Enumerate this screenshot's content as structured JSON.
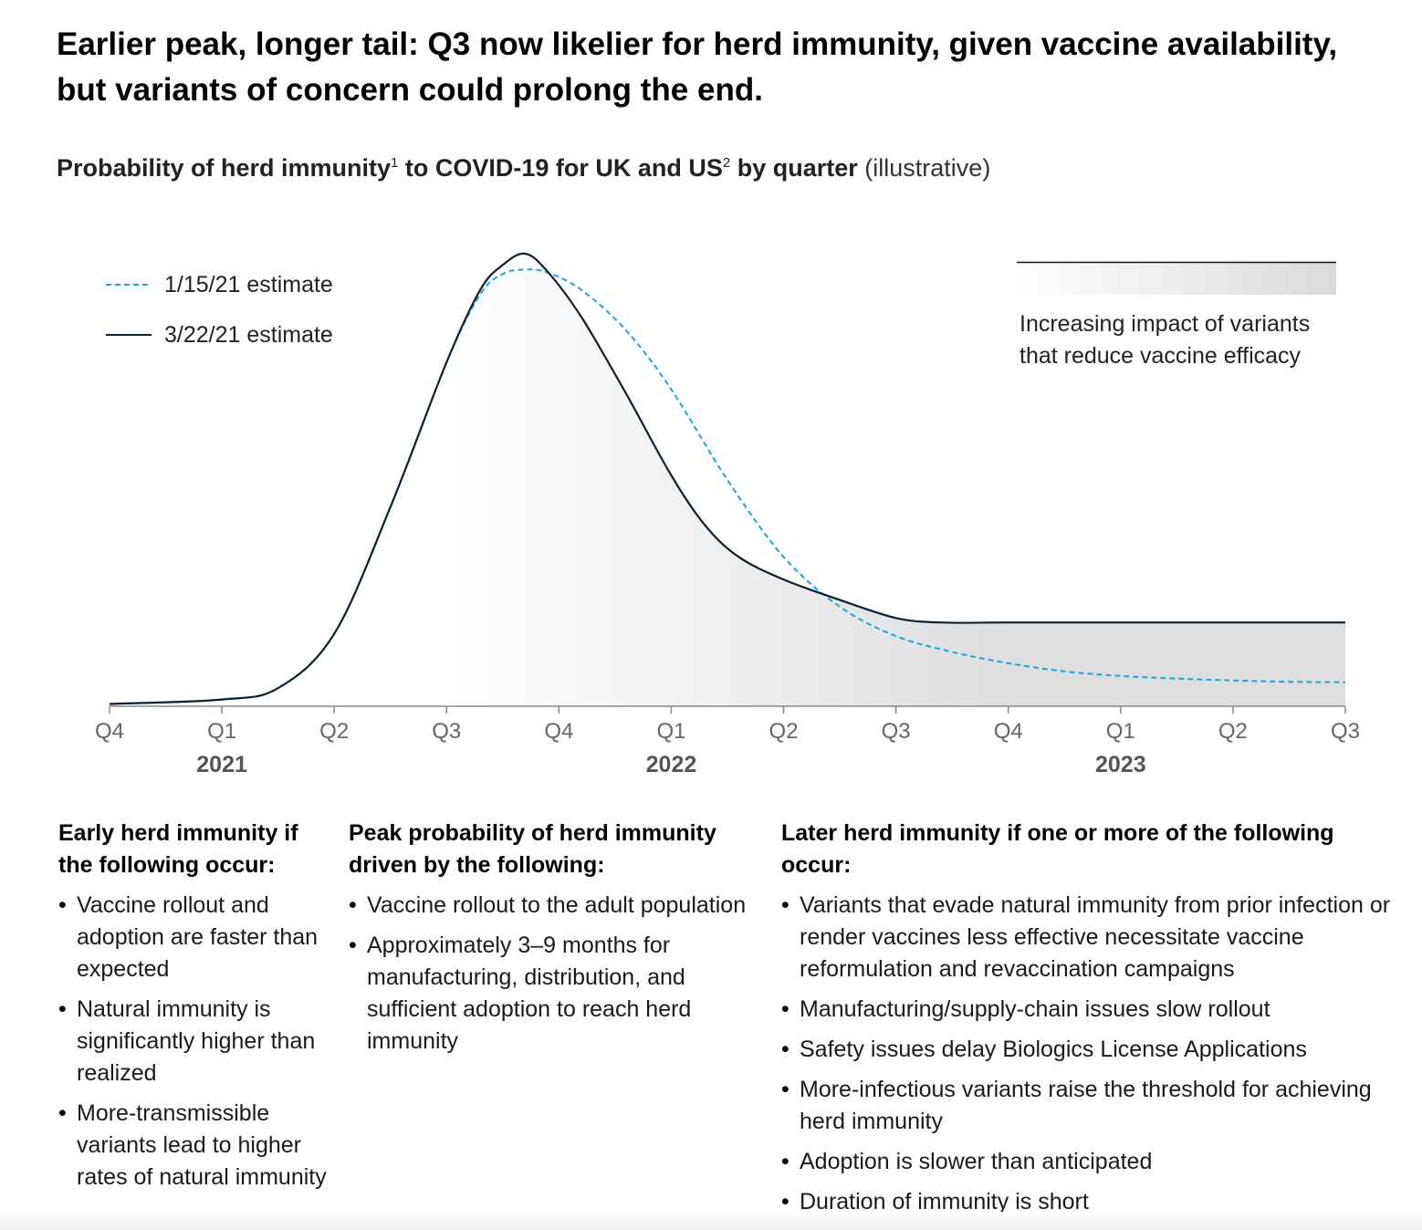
{
  "title": "Earlier peak, longer tail: Q3 now likelier for herd immunity, given vaccine availability, but variants of concern could prolong the end.",
  "subtitle": {
    "part1": "Probability of herd immunity",
    "sup1": "1",
    "part2": " to COVID-19 for UK and US",
    "sup2": "2",
    "part3": " by quarter",
    "paren": " (illustrative)"
  },
  "chart_data": {
    "type": "line",
    "x": [
      "Q4 2020",
      "Q1 2021",
      "Q2 2021",
      "Q3 2021",
      "Q4 2021",
      "Q1 2022",
      "Q2 2022",
      "Q3 2022",
      "Q4 2022",
      "Q1 2023",
      "Q2 2023",
      "Q3 2023"
    ],
    "tick_labels": [
      "Q4",
      "Q1",
      "Q2",
      "Q3",
      "Q4",
      "Q1",
      "Q2",
      "Q3",
      "Q4",
      "Q1",
      "Q2",
      "Q3"
    ],
    "year_labels": [
      {
        "label": "2021",
        "x_index": 1
      },
      {
        "label": "2022",
        "x_index": 5
      },
      {
        "label": "2023",
        "x_index": 9
      }
    ],
    "ylim": [
      0,
      100
    ],
    "yaxis_visible": false,
    "series": [
      {
        "name": "1/15/21 estimate",
        "style": "dashed",
        "color": "#1fa3d8",
        "points": [
          [
            0.0,
            0.5
          ],
          [
            1.0,
            1.5
          ],
          [
            1.5,
            4
          ],
          [
            2.0,
            16
          ],
          [
            2.5,
            44
          ],
          [
            3.0,
            76
          ],
          [
            3.3,
            91
          ],
          [
            3.5,
            95.5
          ],
          [
            3.7,
            96.5
          ],
          [
            3.9,
            95.8
          ],
          [
            4.2,
            92
          ],
          [
            4.6,
            83
          ],
          [
            5.0,
            70
          ],
          [
            5.5,
            50
          ],
          [
            6.0,
            33
          ],
          [
            6.5,
            22
          ],
          [
            7.0,
            15.5
          ],
          [
            7.5,
            12
          ],
          [
            8.0,
            9.5
          ],
          [
            8.5,
            7.7
          ],
          [
            9.0,
            6.7
          ],
          [
            9.5,
            6.1
          ],
          [
            10.0,
            5.7
          ],
          [
            10.5,
            5.4
          ],
          [
            11.0,
            5.3
          ]
        ]
      },
      {
        "name": "3/22/21 estimate",
        "style": "solid",
        "color": "#0d2030",
        "points": [
          [
            0.0,
            0.5
          ],
          [
            1.0,
            1.5
          ],
          [
            1.5,
            4
          ],
          [
            2.0,
            16
          ],
          [
            2.5,
            44
          ],
          [
            3.0,
            76
          ],
          [
            3.3,
            92
          ],
          [
            3.5,
            97.5
          ],
          [
            3.7,
            100
          ],
          [
            3.9,
            96
          ],
          [
            4.2,
            86
          ],
          [
            4.6,
            69
          ],
          [
            5.0,
            51
          ],
          [
            5.3,
            40
          ],
          [
            5.6,
            33
          ],
          [
            6.0,
            28
          ],
          [
            6.5,
            23.5
          ],
          [
            7.0,
            19.5
          ],
          [
            7.4,
            18.5
          ],
          [
            8.0,
            18.5
          ],
          [
            9.0,
            18.5
          ],
          [
            10.0,
            18.5
          ],
          [
            11.0,
            18.5
          ]
        ]
      }
    ],
    "legend": [
      "1/15/21 estimate",
      "3/22/21 estimate"
    ],
    "legend_position": "top-left",
    "annotation": {
      "line1": "Increasing impact of variants",
      "line2": "that reduce vaccine efficacy"
    }
  },
  "columns": [
    {
      "heading": "Early herd immunity if the following occur:",
      "items": [
        "Vaccine rollout and adoption are faster than expected",
        "Natural immunity is significantly higher than realized",
        "More-transmissible variants lead to higher rates of natural immunity"
      ]
    },
    {
      "heading": "Peak probability of herd immunity driven by the following:",
      "items": [
        "Vaccine rollout to the adult population",
        "Approximately 3–9 months for manufacturing, distribution, and sufficient adoption to reach herd immunity"
      ]
    },
    {
      "heading": "Later herd immunity if one or more of the following occur:",
      "items": [
        "Variants that evade natural immunity from prior infection or render vaccines less effective necessitate vaccine reformulation and revaccination campaigns",
        "Manufacturing/supply-chain issues slow rollout",
        "Safety issues delay Biologics License Applications",
        "More-infectious variants raise the threshold for achieving herd immunity",
        "Adoption is slower than anticipated",
        "Duration of immunity is short"
      ]
    }
  ],
  "colors": {
    "dashed_series": "#1fa3d8",
    "solid_series": "#0d2030",
    "axis": "#888888",
    "tick_label": "#666666",
    "year_label": "#555555",
    "fill_gray": "#dedede"
  }
}
